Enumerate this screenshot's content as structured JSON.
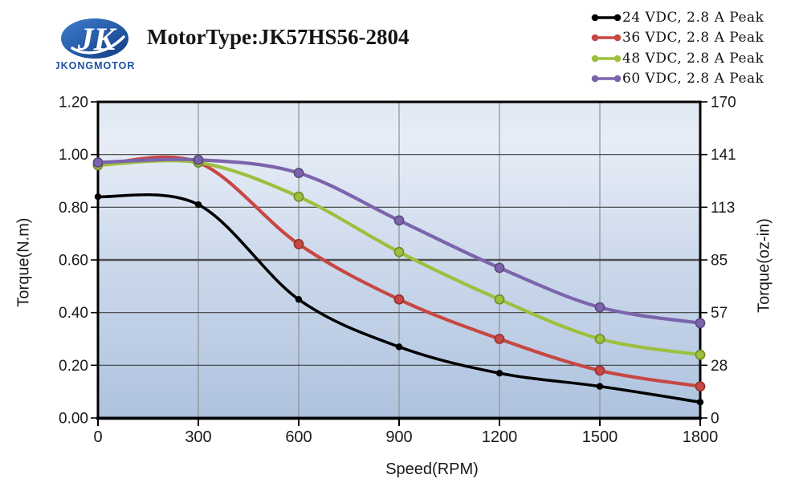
{
  "logo": {
    "brand": "JKONGMOTOR",
    "monogram": "JK"
  },
  "header": {
    "title": "MotorType:JK57HS56-2804"
  },
  "chart_data": {
    "type": "line",
    "x": [
      0,
      300,
      600,
      900,
      1200,
      1500,
      1800
    ],
    "series": [
      {
        "name": "24 VDC, 2.8 A Peak",
        "color": "#000000",
        "values": [
          0.84,
          0.81,
          0.45,
          0.27,
          0.17,
          0.12,
          0.06
        ]
      },
      {
        "name": "36 VDC, 2.8 A Peak",
        "color": "#c84743",
        "values": [
          0.96,
          0.97,
          0.66,
          0.45,
          0.3,
          0.18,
          0.12
        ]
      },
      {
        "name": "48 VDC, 2.8 A Peak",
        "color": "#9cc03d",
        "values": [
          0.96,
          0.97,
          0.84,
          0.63,
          0.45,
          0.3,
          0.24
        ]
      },
      {
        "name": "60 VDC, 2.8 A Peak",
        "color": "#7c64ad",
        "values": [
          0.97,
          0.98,
          0.93,
          0.75,
          0.57,
          0.42,
          0.36
        ]
      }
    ],
    "xlabel": "Speed(RPM)",
    "ylabel_left": "Torque(N.m)",
    "ylabel_right": "Torque(oz-in)",
    "xlim": [
      0,
      1800
    ],
    "ylim": [
      0,
      1.2
    ],
    "xticks": [
      0,
      300,
      600,
      900,
      1200,
      1500,
      1800
    ],
    "yticks": [
      {
        "v": 0.0,
        "left": "0.00",
        "right": "0"
      },
      {
        "v": 0.2,
        "left": "0.20",
        "right": "28"
      },
      {
        "v": 0.4,
        "left": "0.40",
        "right": "57"
      },
      {
        "v": 0.6,
        "left": "0.60",
        "right": "85"
      },
      {
        "v": 0.8,
        "left": "0.80",
        "right": "113"
      },
      {
        "v": 1.0,
        "left": "1.00",
        "right": "141"
      },
      {
        "v": 1.2,
        "left": "1.20",
        "right": "170"
      }
    ],
    "emphasis_ytick": 0.6,
    "grid": true,
    "legend_position": "top-right"
  }
}
